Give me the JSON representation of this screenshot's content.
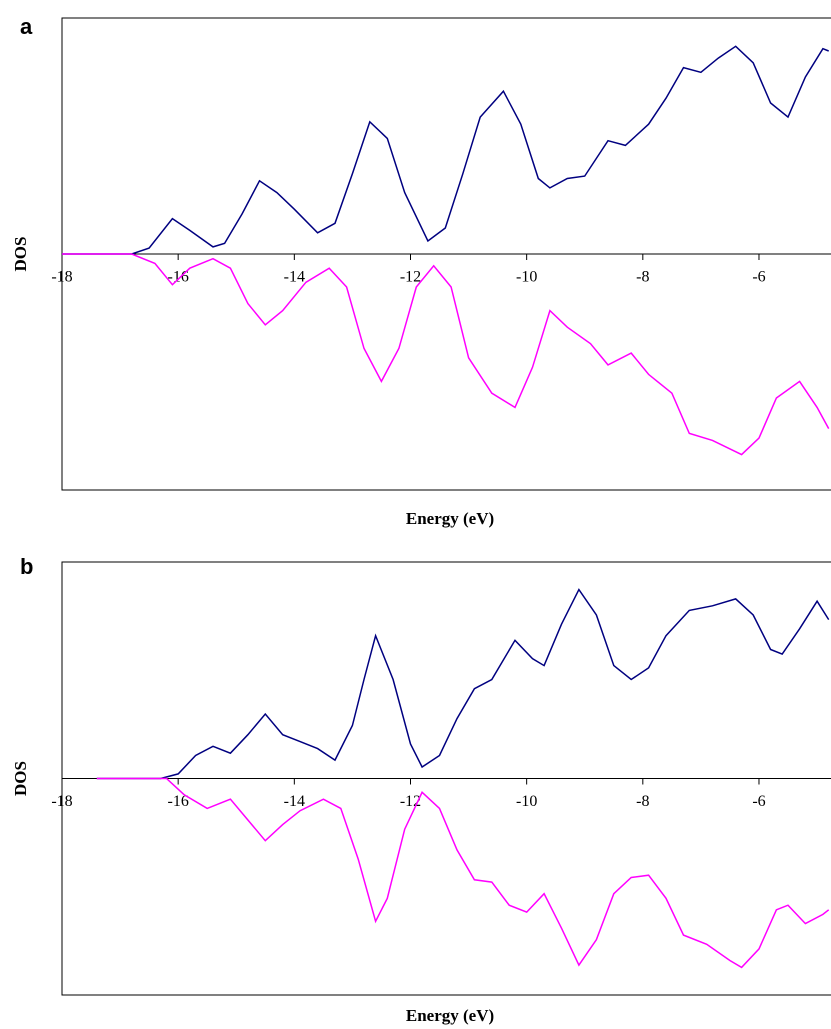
{
  "chart_data": [
    {
      "type": "line",
      "panel": "a",
      "xlabel": "Energy (eV)",
      "ylabel": "DOS",
      "xlim": [
        -18,
        -4.76
      ],
      "ylim": [
        -10,
        10
      ],
      "xticks": [
        -18,
        -16,
        -14,
        -12,
        -10,
        -8,
        -6
      ],
      "series": [
        {
          "color": "#000080",
          "x": [
            -18,
            -16.8,
            -16.5,
            -16.1,
            -15.8,
            -15.4,
            -15.2,
            -14.9,
            -14.6,
            -14.3,
            -14,
            -13.6,
            -13.3,
            -13,
            -12.7,
            -12.4,
            -12.1,
            -11.7,
            -11.4,
            -11.1,
            -10.8,
            -10.4,
            -10.1,
            -9.8,
            -9.6,
            -9.3,
            -9.0,
            -8.6,
            -8.3,
            -7.9,
            -7.6,
            -7.3,
            -7.0,
            -6.7,
            -6.4,
            -6.1,
            -5.8,
            -5.5,
            -5.2,
            -4.9,
            -4.8
          ],
          "values": [
            0,
            0,
            0.25,
            1.5,
            1.0,
            0.3,
            0.45,
            1.7,
            3.1,
            2.6,
            1.9,
            0.9,
            1.3,
            3.4,
            5.6,
            4.9,
            2.6,
            0.55,
            1.1,
            3.4,
            5.8,
            6.9,
            5.5,
            3.2,
            2.8,
            3.2,
            3.3,
            4.8,
            4.6,
            5.5,
            6.6,
            7.9,
            7.7,
            8.3,
            8.8,
            8.1,
            6.4,
            5.8,
            7.5,
            8.7,
            8.6
          ]
        },
        {
          "color": "#ff00ff",
          "x": [
            -18,
            -16.8,
            -16.4,
            -16.1,
            -15.8,
            -15.4,
            -15.1,
            -14.8,
            -14.5,
            -14.2,
            -13.8,
            -13.4,
            -13.1,
            -12.8,
            -12.5,
            -12.2,
            -11.9,
            -11.6,
            -11.3,
            -11,
            -10.6,
            -10.2,
            -9.9,
            -9.6,
            -9.3,
            -8.9,
            -8.6,
            -8.2,
            -7.9,
            -7.5,
            -7.2,
            -6.8,
            -6.3,
            -6.0,
            -5.7,
            -5.3,
            -5.0,
            -4.8
          ],
          "values": [
            0,
            0,
            -0.4,
            -1.3,
            -0.6,
            -0.2,
            -0.6,
            -2.1,
            -3.0,
            -2.4,
            -1.2,
            -0.6,
            -1.4,
            -4.0,
            -5.4,
            -4.0,
            -1.4,
            -0.5,
            -1.4,
            -4.4,
            -5.9,
            -6.5,
            -4.8,
            -2.4,
            -3.1,
            -3.8,
            -4.7,
            -4.2,
            -5.1,
            -5.9,
            -7.6,
            -7.9,
            -8.5,
            -7.8,
            -6.1,
            -5.4,
            -6.5,
            -7.4
          ]
        }
      ]
    },
    {
      "type": "line",
      "panel": "b",
      "xlabel": "Energy (eV)",
      "ylabel": "DOS",
      "xlim": [
        -18,
        -4.76
      ],
      "ylim": [
        -9.4,
        9.4
      ],
      "xticks": [
        -18,
        -16,
        -14,
        -12,
        -10,
        -8,
        -6
      ],
      "series": [
        {
          "color": "#000080",
          "x": [
            -17.4,
            -16.3,
            -16.0,
            -15.7,
            -15.4,
            -15.1,
            -14.8,
            -14.5,
            -14.2,
            -13.9,
            -13.6,
            -13.3,
            -13.0,
            -12.8,
            -12.6,
            -12.3,
            -12.0,
            -11.8,
            -11.5,
            -11.2,
            -10.9,
            -10.6,
            -10.2,
            -9.9,
            -9.7,
            -9.4,
            -9.1,
            -8.8,
            -8.5,
            -8.2,
            -7.9,
            -7.6,
            -7.2,
            -6.8,
            -6.4,
            -6.1,
            -5.8,
            -5.6,
            -5.3,
            -5.0,
            -4.8
          ],
          "values": [
            0,
            0,
            0.2,
            1.0,
            1.4,
            1.1,
            1.9,
            2.8,
            1.9,
            1.6,
            1.3,
            0.8,
            2.3,
            4.3,
            6.2,
            4.3,
            1.5,
            0.5,
            1.0,
            2.6,
            3.9,
            4.3,
            6.0,
            5.2,
            4.9,
            6.7,
            8.2,
            7.1,
            4.9,
            4.3,
            4.8,
            6.2,
            7.3,
            7.5,
            7.8,
            7.1,
            5.6,
            5.4,
            6.5,
            7.7,
            6.9
          ]
        },
        {
          "color": "#ff00ff",
          "x": [
            -17.4,
            -16.2,
            -15.9,
            -15.5,
            -15.1,
            -14.8,
            -14.5,
            -14.2,
            -13.9,
            -13.5,
            -13.2,
            -12.9,
            -12.6,
            -12.4,
            -12.1,
            -11.8,
            -11.5,
            -11.2,
            -10.9,
            -10.6,
            -10.3,
            -10.0,
            -9.7,
            -9.4,
            -9.1,
            -8.8,
            -8.5,
            -8.2,
            -7.9,
            -7.6,
            -7.3,
            -6.9,
            -6.5,
            -6.3,
            -6.0,
            -5.7,
            -5.5,
            -5.2,
            -4.9,
            -4.8
          ],
          "values": [
            0,
            0,
            -0.7,
            -1.3,
            -0.9,
            -1.8,
            -2.7,
            -2.0,
            -1.4,
            -0.9,
            -1.3,
            -3.5,
            -6.2,
            -5.2,
            -2.2,
            -0.6,
            -1.3,
            -3.1,
            -4.4,
            -4.5,
            -5.5,
            -5.8,
            -5.0,
            -6.5,
            -8.1,
            -7.0,
            -5.0,
            -4.3,
            -4.2,
            -5.2,
            -6.8,
            -7.2,
            -7.9,
            -8.2,
            -7.4,
            -5.7,
            -5.5,
            -6.3,
            -5.9,
            -5.7
          ]
        }
      ]
    }
  ]
}
